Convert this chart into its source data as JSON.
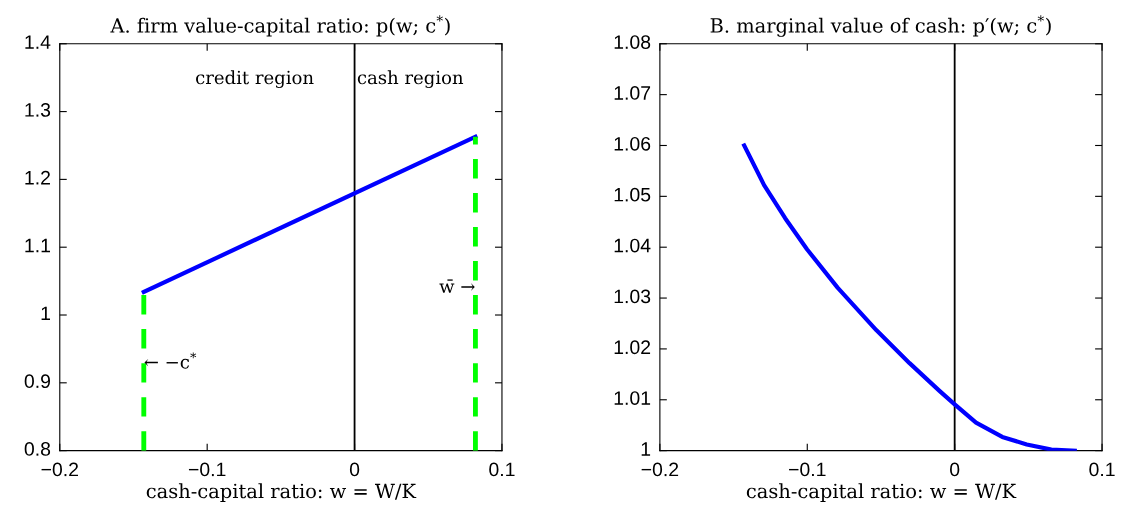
{
  "chart_data": [
    {
      "type": "line",
      "title": "A. firm value-capital ratio: p(w; c$^{*}$)",
      "xlabel": "cash-capital ratio: w = W/K",
      "xlim": [
        -0.2,
        0.1
      ],
      "xticks": [
        -0.2,
        -0.1,
        0,
        0.1
      ],
      "ylim": [
        0.8,
        1.4
      ],
      "yticks": [
        0.8,
        0.9,
        1,
        1.1,
        1.2,
        1.3,
        1.4
      ],
      "grid": false,
      "legend": false,
      "series": [
        {
          "color": "#0000ff",
          "x": [
            -0.143,
            0.082
          ],
          "values": [
            1.034,
            1.263
          ],
          "line_style": "solid"
        },
        {
          "color": "#00ff00",
          "x": [
            -0.143,
            -0.143
          ],
          "values": [
            0.8,
            1.034
          ],
          "line_style": "dashed"
        },
        {
          "color": "#00ff00",
          "x": [
            0.082,
            0.082
          ],
          "values": [
            0.8,
            1.263
          ],
          "line_style": "dashed"
        }
      ],
      "ref_lines": [
        {
          "axis": "x",
          "value": 0,
          "color": "#000000"
        }
      ],
      "annotations": [
        "credit region",
        "cash region",
        "← −c$^{*}$",
        "w̄ →"
      ]
    },
    {
      "type": "line",
      "title": "B. marginal value of cash: p′(w; c$^{*}$)",
      "xlabel": "cash-capital ratio: w = W/K",
      "xlim": [
        -0.2,
        0.1
      ],
      "xticks": [
        -0.2,
        -0.1,
        0,
        0.1
      ],
      "ylim": [
        1,
        1.08
      ],
      "yticks": [
        1,
        1.01,
        1.02,
        1.03,
        1.04,
        1.05,
        1.06,
        1.07,
        1.08
      ],
      "grid": false,
      "legend": false,
      "series": [
        {
          "color": "#0000ff",
          "x": [
            -0.1428,
            -0.1293,
            -0.115,
            -0.1002,
            -0.0793,
            -0.0532,
            -0.0306,
            -0.0105,
            0,
            0.0145,
            0.0323,
            0.0489,
            0.0656,
            0.0815
          ],
          "values": [
            1.06,
            1.0522,
            1.0457,
            1.0396,
            1.032,
            1.0237,
            1.0172,
            1.0118,
            1.0091,
            1.0055,
            1.0027,
            1.0012,
            1.0002,
            1.0
          ],
          "line_style": "solid"
        }
      ],
      "ref_lines": [
        {
          "axis": "x",
          "value": 0,
          "color": "#000000"
        }
      ]
    }
  ]
}
